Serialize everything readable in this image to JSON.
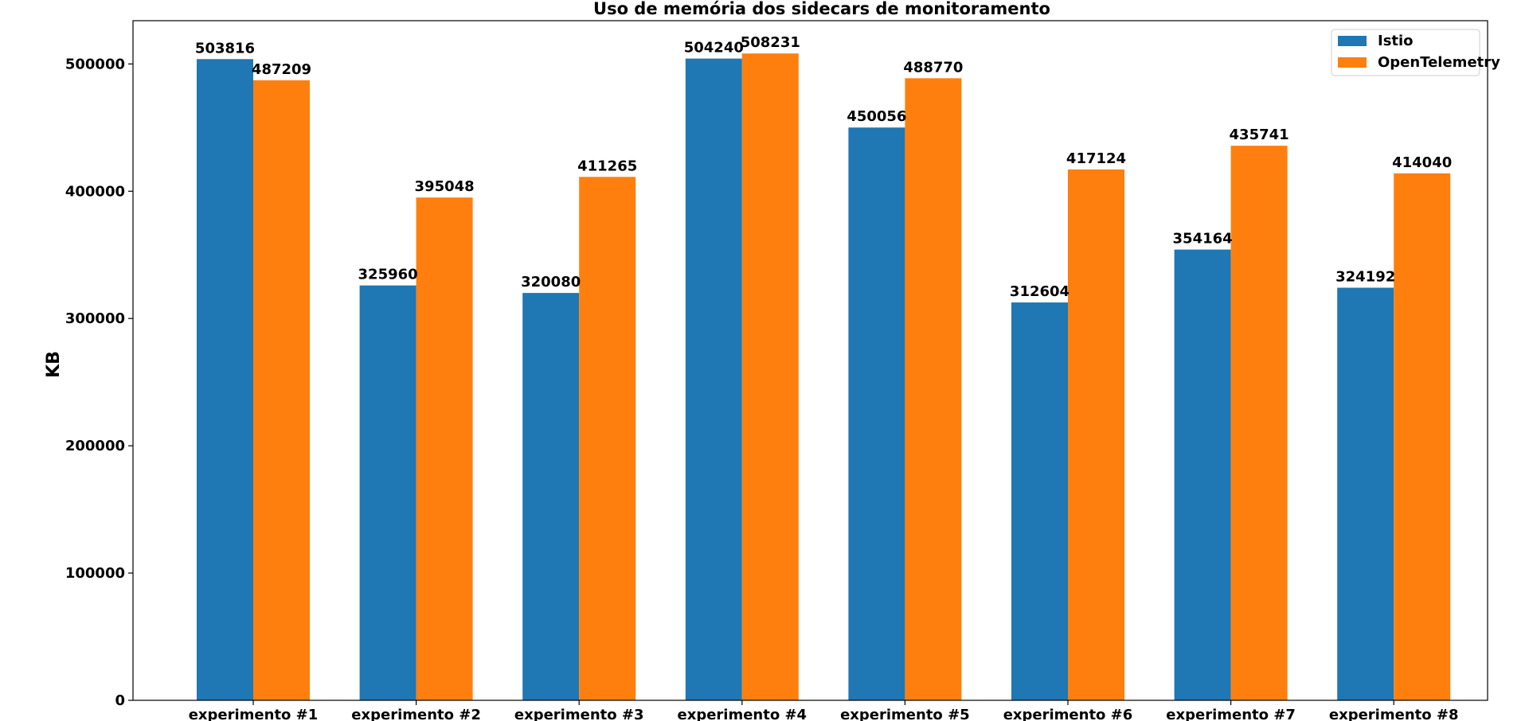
{
  "chart_data": {
    "type": "bar",
    "title": "Uso de memória dos sidecars de monitoramento",
    "xlabel": "",
    "ylabel": "KB",
    "categories": [
      "experimento #1",
      "experimento #2",
      "experimento #3",
      "experimento #4",
      "experimento #5",
      "experimento #6",
      "experimento #7",
      "experimento #8"
    ],
    "series": [
      {
        "name": "Istio",
        "color": "#1f77b4",
        "values": [
          503816,
          325960,
          320080,
          504240,
          450056,
          312604,
          354164,
          324192
        ]
      },
      {
        "name": "OpenTelemetry",
        "color": "#ff7f0e",
        "values": [
          487209,
          395048,
          411265,
          508231,
          488770,
          417124,
          435741,
          414040
        ]
      }
    ],
    "ylim": [
      0,
      534000
    ],
    "yticks": [
      0,
      100000,
      200000,
      300000,
      400000,
      500000
    ],
    "grid": false,
    "legend": "top-right",
    "data_labels": true
  }
}
